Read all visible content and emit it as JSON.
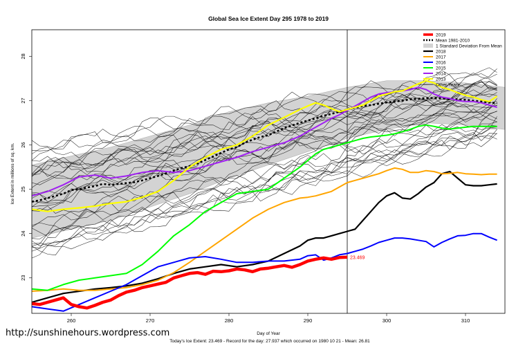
{
  "chart_data": {
    "type": "line",
    "title": "Global Sea Ice Extent Day 295 1978 to 2019",
    "xlabel": "Day of Year",
    "ylabel": "Ice Extent in millions of sq. km.",
    "xlim": [
      255,
      315
    ],
    "ylim": [
      22.2,
      28.6
    ],
    "x_ticks": [
      260,
      270,
      280,
      290,
      300,
      310
    ],
    "y_ticks": [
      23,
      24,
      25,
      26,
      27,
      28
    ],
    "marker_day": 295,
    "end_label": "23.469",
    "std_band": {
      "x": [
        255,
        260,
        265,
        270,
        275,
        280,
        285,
        290,
        295,
        300,
        305,
        310,
        315
      ],
      "upper": [
        25.55,
        25.75,
        25.95,
        26.2,
        26.45,
        26.75,
        26.95,
        27.1,
        27.3,
        27.45,
        27.45,
        27.4,
        27.3
      ],
      "lower": [
        23.9,
        24.1,
        24.3,
        24.6,
        24.9,
        25.25,
        25.55,
        25.85,
        26.15,
        26.35,
        26.5,
        26.45,
        26.35
      ]
    },
    "series": [
      {
        "name": "2019",
        "color": "#ff0000",
        "width": 4.5,
        "x": [
          255,
          256,
          257,
          258,
          259,
          260,
          261,
          262,
          263,
          264,
          265,
          266,
          267,
          268,
          269,
          270,
          271,
          272,
          273,
          274,
          275,
          276,
          277,
          278,
          279,
          280,
          281,
          282,
          283,
          284,
          285,
          286,
          287,
          288,
          289,
          290,
          291,
          292,
          293,
          294,
          295
        ],
        "y": [
          22.42,
          22.4,
          22.45,
          22.5,
          22.55,
          22.4,
          22.35,
          22.32,
          22.38,
          22.45,
          22.5,
          22.6,
          22.68,
          22.72,
          22.78,
          22.82,
          22.86,
          22.9,
          23.0,
          23.05,
          23.1,
          23.12,
          23.08,
          23.15,
          23.14,
          23.16,
          23.2,
          23.18,
          23.14,
          23.2,
          23.22,
          23.25,
          23.28,
          23.24,
          23.3,
          23.38,
          23.42,
          23.45,
          23.42,
          23.46,
          23.469
        ]
      },
      {
        "name": "Mean 1981-2010",
        "color": "#000000",
        "width": 2.6,
        "dash": "3,3",
        "x": [
          255,
          256,
          257,
          258,
          259,
          260,
          261,
          262,
          263,
          264,
          265,
          266,
          267,
          268,
          269,
          270,
          271,
          272,
          273,
          274,
          275,
          276,
          277,
          278,
          279,
          280,
          281,
          282,
          283,
          284,
          285,
          286,
          287,
          288,
          289,
          290,
          291,
          292,
          293,
          294,
          295,
          296,
          297,
          298,
          299,
          300,
          301,
          302,
          303,
          304,
          305,
          306,
          307,
          308,
          309,
          310,
          311,
          312,
          313,
          314
        ],
        "y": [
          24.72,
          24.75,
          24.8,
          24.85,
          24.9,
          24.98,
          25.0,
          25.04,
          25.07,
          25.12,
          25.1,
          25.12,
          25.14,
          25.16,
          25.2,
          25.25,
          25.3,
          25.36,
          25.42,
          25.48,
          25.52,
          25.58,
          25.66,
          25.74,
          25.82,
          25.9,
          25.95,
          26.05,
          26.12,
          26.18,
          26.22,
          26.3,
          26.38,
          26.44,
          26.5,
          26.55,
          26.6,
          26.66,
          26.7,
          26.75,
          26.8,
          26.84,
          26.88,
          26.9,
          26.93,
          26.96,
          26.98,
          27.0,
          27.03,
          27.04,
          27.06,
          27.06,
          27.05,
          27.04,
          27.03,
          27.02,
          27.0,
          26.98,
          26.96,
          26.94
        ]
      },
      {
        "name": "1 Standard Deviation From Mean",
        "color": "#d3d3d3",
        "band": true
      },
      {
        "name": "2018",
        "color": "#000000",
        "width": 2.2,
        "x": [
          255,
          257,
          259,
          261,
          263,
          265,
          267,
          269,
          271,
          273,
          275,
          277,
          279,
          281,
          283,
          285,
          287,
          289,
          290,
          291,
          292,
          293,
          294,
          295,
          296,
          297,
          298,
          299,
          300,
          301,
          302,
          303,
          304,
          305,
          306,
          307,
          308,
          309,
          310,
          311,
          312,
          313,
          314
        ],
        "y": [
          22.45,
          22.55,
          22.65,
          22.7,
          22.75,
          22.78,
          22.82,
          22.88,
          22.98,
          23.1,
          23.2,
          23.25,
          23.3,
          23.25,
          23.3,
          23.38,
          23.55,
          23.72,
          23.85,
          23.9,
          23.9,
          23.95,
          24.0,
          24.05,
          24.1,
          24.3,
          24.5,
          24.7,
          24.85,
          24.92,
          24.8,
          24.78,
          24.9,
          25.05,
          25.15,
          25.35,
          25.4,
          25.25,
          25.1,
          25.08,
          25.08,
          25.1,
          25.12
        ]
      },
      {
        "name": "2017",
        "color": "#ffa500",
        "width": 2.0,
        "x": [
          255,
          257,
          259,
          261,
          263,
          265,
          267,
          269,
          271,
          273,
          275,
          277,
          279,
          281,
          283,
          285,
          287,
          289,
          290,
          291,
          292,
          293,
          294,
          295,
          296,
          297,
          298,
          299,
          300,
          301,
          302,
          303,
          304,
          305,
          306,
          307,
          308,
          309,
          310,
          311,
          312,
          313,
          314
        ],
        "y": [
          22.7,
          22.72,
          22.75,
          22.72,
          22.72,
          22.75,
          22.78,
          22.85,
          22.95,
          23.12,
          23.35,
          23.6,
          23.85,
          24.1,
          24.35,
          24.55,
          24.7,
          24.8,
          24.82,
          24.85,
          24.9,
          24.95,
          25.05,
          25.15,
          25.2,
          25.25,
          25.3,
          25.35,
          25.42,
          25.48,
          25.45,
          25.38,
          25.38,
          25.42,
          25.4,
          25.35,
          25.36,
          25.38,
          25.35,
          25.34,
          25.33,
          25.34,
          25.34
        ]
      },
      {
        "name": "2016",
        "color": "#0000ff",
        "width": 2.0,
        "x": [
          255,
          257,
          259,
          261,
          263,
          265,
          267,
          269,
          271,
          273,
          275,
          277,
          279,
          281,
          283,
          285,
          287,
          289,
          290,
          291,
          292,
          293,
          294,
          295,
          296,
          297,
          298,
          299,
          300,
          301,
          302,
          303,
          304,
          305,
          306,
          307,
          308,
          309,
          310,
          311,
          312,
          313,
          314
        ],
        "y": [
          22.35,
          22.3,
          22.25,
          22.4,
          22.55,
          22.7,
          22.85,
          23.05,
          23.25,
          23.35,
          23.45,
          23.48,
          23.42,
          23.35,
          23.35,
          23.38,
          23.38,
          23.42,
          23.5,
          23.52,
          23.4,
          23.45,
          23.52,
          23.55,
          23.6,
          23.65,
          23.72,
          23.8,
          23.85,
          23.9,
          23.9,
          23.88,
          23.85,
          23.82,
          23.7,
          23.8,
          23.88,
          23.95,
          23.96,
          24.0,
          24.0,
          23.92,
          23.85
        ]
      },
      {
        "name": "2015",
        "color": "#00ff00",
        "width": 2.0,
        "x": [
          255,
          257,
          259,
          261,
          263,
          265,
          267,
          269,
          271,
          273,
          275,
          277,
          279,
          281,
          283,
          285,
          287,
          289,
          290,
          291,
          292,
          293,
          294,
          295,
          296,
          297,
          298,
          299,
          300,
          301,
          302,
          303,
          304,
          305,
          306,
          307,
          308,
          309,
          310,
          311,
          312,
          313,
          314
        ],
        "y": [
          22.75,
          22.72,
          22.85,
          22.95,
          23.0,
          23.05,
          23.1,
          23.3,
          23.6,
          23.95,
          24.2,
          24.5,
          24.7,
          24.9,
          24.95,
          25.0,
          25.25,
          25.5,
          25.65,
          25.8,
          25.9,
          25.95,
          26.0,
          26.05,
          26.1,
          26.15,
          26.18,
          26.2,
          26.22,
          26.25,
          26.3,
          26.35,
          26.42,
          26.45,
          26.42,
          26.38,
          26.36,
          26.38,
          26.4,
          26.42,
          26.42,
          26.42,
          26.42
        ]
      },
      {
        "name": "2014",
        "color": "#a020f0",
        "width": 2.0,
        "x": [
          255,
          257,
          259,
          261,
          263,
          265,
          267,
          269,
          271,
          273,
          275,
          277,
          279,
          281,
          283,
          285,
          287,
          289,
          290,
          291,
          292,
          293,
          294,
          295,
          296,
          297,
          298,
          299,
          300,
          301,
          302,
          303,
          304,
          305,
          306,
          307,
          308,
          309,
          310,
          311,
          312,
          313,
          314
        ],
        "y": [
          24.85,
          24.95,
          25.1,
          25.28,
          25.32,
          25.25,
          25.3,
          25.38,
          25.42,
          25.38,
          25.42,
          25.52,
          25.62,
          25.72,
          25.85,
          25.95,
          26.05,
          26.2,
          26.3,
          26.4,
          26.5,
          26.6,
          26.68,
          26.78,
          26.88,
          26.98,
          27.08,
          27.15,
          27.18,
          27.2,
          27.22,
          27.25,
          27.3,
          27.25,
          27.15,
          27.08,
          27.05,
          27.0,
          26.98,
          26.98,
          26.95,
          26.9,
          26.85
        ]
      },
      {
        "name": "2013",
        "color": "#ffff00",
        "width": 2.2,
        "x": [
          255,
          257,
          259,
          261,
          263,
          265,
          267,
          269,
          271,
          273,
          275,
          277,
          279,
          281,
          283,
          285,
          287,
          289,
          290,
          291,
          292,
          293,
          294,
          295,
          296,
          297,
          298,
          299,
          300,
          301,
          302,
          303,
          304,
          305,
          306,
          307,
          308,
          309,
          310,
          311,
          312,
          313,
          314
        ],
        "y": [
          24.55,
          24.5,
          24.55,
          24.58,
          24.62,
          24.68,
          24.72,
          24.82,
          24.95,
          25.2,
          25.5,
          25.72,
          25.9,
          26.0,
          26.2,
          26.45,
          26.62,
          26.8,
          26.88,
          26.95,
          26.9,
          26.82,
          26.75,
          26.8,
          26.85,
          26.9,
          27.0,
          27.1,
          27.15,
          27.2,
          27.22,
          27.3,
          27.38,
          27.45,
          27.4,
          27.3,
          27.25,
          27.18,
          27.12,
          27.08,
          27.02,
          26.98,
          27.1
        ]
      },
      {
        "name": "Other Years",
        "color": "#000000",
        "width": 0.6
      }
    ]
  }
}
